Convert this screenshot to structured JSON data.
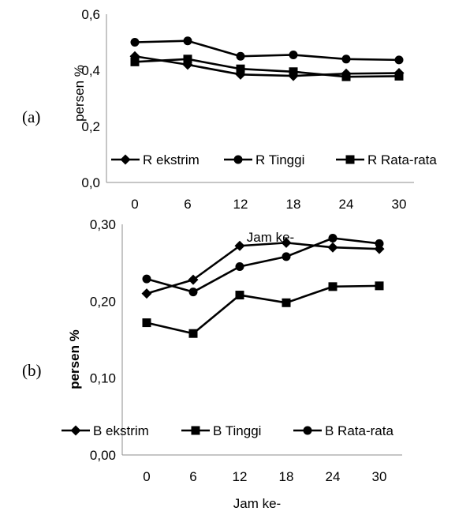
{
  "chart_data": [
    {
      "type": "line",
      "panel_label": "(a)",
      "categories": [
        "0",
        "6",
        "12",
        "18",
        "24",
        "30"
      ],
      "xlabel": "Jam ke-",
      "ylabel": "persen %",
      "ylim": [
        0.0,
        0.6
      ],
      "yticks": [
        "0,0",
        "0,2",
        "0,4",
        "0,6"
      ],
      "ytick_values": [
        0.0,
        0.2,
        0.4,
        0.6
      ],
      "grid": false,
      "legend_position": "bottom-inside",
      "series": [
        {
          "name": "R ekstrim",
          "marker": "diamond",
          "values": [
            0.45,
            0.42,
            0.385,
            0.38,
            0.388,
            0.39
          ]
        },
        {
          "name": "R Tinggi",
          "marker": "circle",
          "values": [
            0.5,
            0.505,
            0.45,
            0.455,
            0.44,
            0.437
          ]
        },
        {
          "name": "R Rata-rata",
          "marker": "square",
          "values": [
            0.43,
            0.44,
            0.405,
            0.395,
            0.377,
            0.379
          ]
        }
      ]
    },
    {
      "type": "line",
      "panel_label": "(b)",
      "categories": [
        "0",
        "6",
        "12",
        "18",
        "24",
        "30"
      ],
      "xlabel": "Jam ke-",
      "ylabel": "persen %",
      "ylim": [
        0.0,
        0.3
      ],
      "yticks": [
        "0,00",
        "0,10",
        "0,20",
        "0,30"
      ],
      "ytick_values": [
        0.0,
        0.1,
        0.2,
        0.3
      ],
      "grid": false,
      "legend_position": "bottom-inside",
      "series": [
        {
          "name": "B ekstrim",
          "marker": "diamond",
          "values": [
            0.21,
            0.228,
            0.272,
            0.276,
            0.27,
            0.268
          ]
        },
        {
          "name": "B Tinggi",
          "marker": "square",
          "values": [
            0.172,
            0.158,
            0.208,
            0.198,
            0.219,
            0.22
          ]
        },
        {
          "name": "B Rata-rata",
          "marker": "circle",
          "values": [
            0.229,
            0.212,
            0.245,
            0.258,
            0.282,
            0.275
          ]
        }
      ]
    }
  ]
}
